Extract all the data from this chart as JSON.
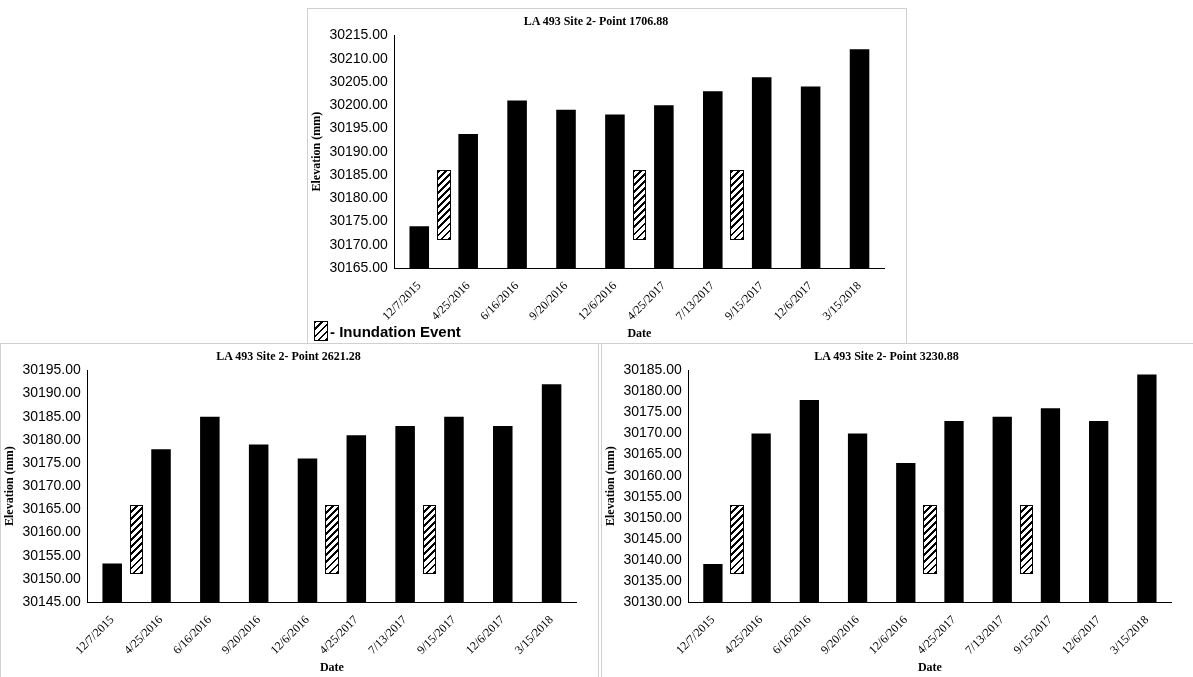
{
  "chart_data": [
    {
      "type": "bar",
      "title": "LA 493 Site 2- Point 1706.88",
      "xlabel": "Date",
      "ylabel": "Elevation (mm)",
      "categories": [
        "12/7/2015",
        "4/25/2016",
        "6/16/2016",
        "9/20/2016",
        "12/6/2016",
        "4/25/2017",
        "7/13/2017",
        "9/15/2017",
        "12/6/2017",
        "3/15/2018"
      ],
      "values": [
        30174,
        30193.8,
        30201,
        30199,
        30198,
        30200,
        30203,
        30206,
        30204,
        30212
      ],
      "color": "#000000",
      "ylim": [
        30165,
        30215
      ],
      "yticks": [
        {
          "value": 30165,
          "label": "30165.00"
        },
        {
          "value": 30170,
          "label": "30170.00"
        },
        {
          "value": 30175,
          "label": "30175.00"
        },
        {
          "value": 30180,
          "label": "30180.00"
        },
        {
          "value": 30185,
          "label": "30185.00"
        },
        {
          "value": 30190,
          "label": "30190.00"
        },
        {
          "value": 30195,
          "label": "30195.00"
        },
        {
          "value": 30200,
          "label": "30200.00"
        },
        {
          "value": 30205,
          "label": "30205.00"
        },
        {
          "value": 30210,
          "label": "30210.00"
        },
        {
          "value": 30215,
          "label": "30215.00"
        }
      ],
      "annotations": [
        "- Inundation  Event"
      ]
    },
    {
      "type": "bar",
      "title": "LA 493 Site 2- Point 2621.28",
      "xlabel": "Date",
      "ylabel": "Elevation (mm)",
      "categories": [
        "12/7/2015",
        "4/25/2016",
        "6/16/2016",
        "9/20/2016",
        "12/6/2016",
        "4/25/2017",
        "7/13/2017",
        "9/15/2017",
        "12/6/2017",
        "3/15/2018"
      ],
      "values": [
        30153.3,
        30178,
        30185,
        30179,
        30176,
        30181,
        30183,
        30185,
        30183,
        30192
      ],
      "color": "#000000",
      "ylim": [
        30145,
        30195
      ],
      "yticks": [
        {
          "value": 30145,
          "label": "30145.00"
        },
        {
          "value": 30150,
          "label": "30150.00"
        },
        {
          "value": 30155,
          "label": "30155.00"
        },
        {
          "value": 30160,
          "label": "30160.00"
        },
        {
          "value": 30165,
          "label": "30165.00"
        },
        {
          "value": 30170,
          "label": "30170.00"
        },
        {
          "value": 30175,
          "label": "30175.00"
        },
        {
          "value": 30180,
          "label": "30180.00"
        },
        {
          "value": 30185,
          "label": "30185.00"
        },
        {
          "value": 30190,
          "label": "30190.00"
        },
        {
          "value": 30195,
          "label": "30195.00"
        }
      ]
    },
    {
      "type": "bar",
      "title": "LA 493 Site 2- Point 3230.88",
      "xlabel": "Date",
      "ylabel": "Elevation (mm)",
      "categories": [
        "12/7/2015",
        "4/25/2016",
        "6/16/2016",
        "9/20/2016",
        "12/6/2016",
        "4/25/2017",
        "7/13/2017",
        "9/15/2017",
        "12/6/2017",
        "3/15/2018"
      ],
      "values": [
        30139,
        30170,
        30178,
        30170,
        30163,
        30173,
        30174,
        30176,
        30173,
        30184
      ],
      "color": "#000000",
      "ylim": [
        30130,
        30185
      ],
      "yticks": [
        {
          "value": 30130,
          "label": "30130.00"
        },
        {
          "value": 30135,
          "label": "30135.00"
        },
        {
          "value": 30140,
          "label": "30140.00"
        },
        {
          "value": 30145,
          "label": "30145.00"
        },
        {
          "value": 30150,
          "label": "30150.00"
        },
        {
          "value": 30155,
          "label": "30155.00"
        },
        {
          "value": 30160,
          "label": "30160.00"
        },
        {
          "value": 30165,
          "label": "30165.00"
        },
        {
          "value": 30170,
          "label": "30170.00"
        },
        {
          "value": 30175,
          "label": "30175.00"
        },
        {
          "value": 30180,
          "label": "30180.00"
        },
        {
          "value": 30185,
          "label": "30185.00"
        }
      ]
    }
  ]
}
